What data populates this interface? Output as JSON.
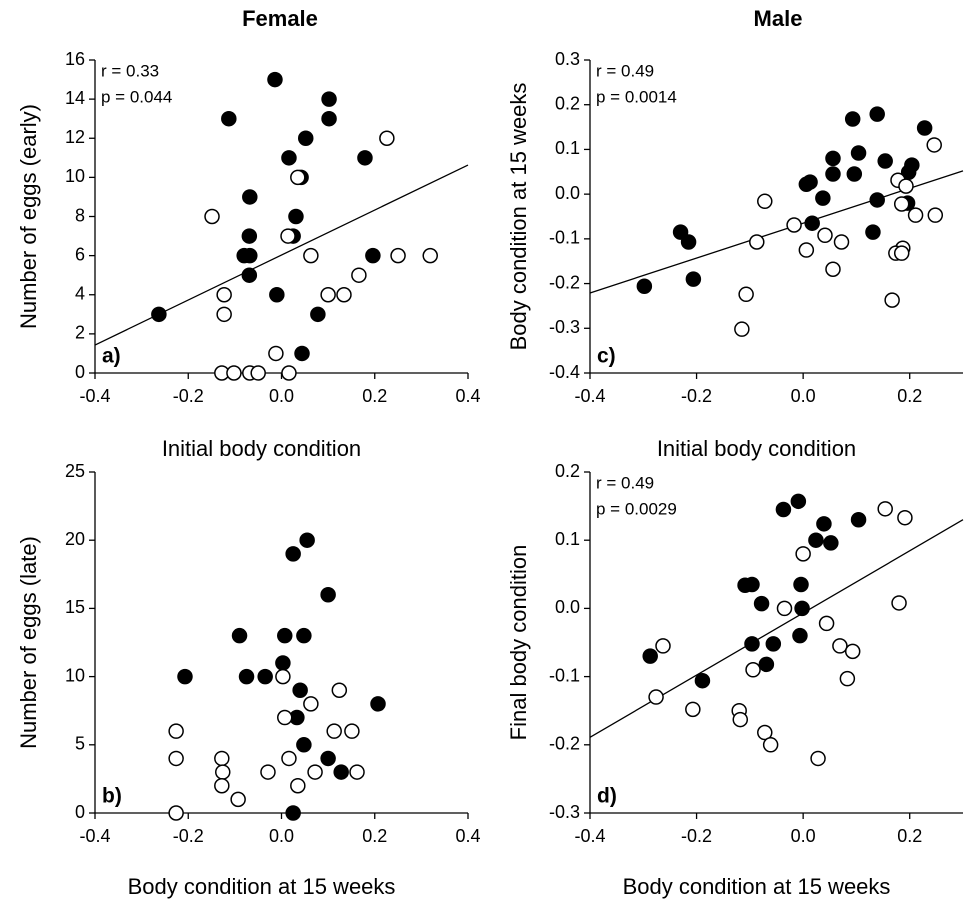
{
  "chart_data": [
    {
      "type": "scatter",
      "title": "Female",
      "label": "a)",
      "annotations": [
        "r = 0.33",
        "p = 0.044"
      ],
      "xlabel": "Initial body condition",
      "ylabel": "Number of eggs (early)",
      "xlim": [
        -0.4,
        0.4
      ],
      "ylim": [
        0,
        16
      ],
      "xticks": [
        -0.4,
        -0.2,
        {
          "value": 0,
          "label": "0.0"
        },
        0.2,
        0.4
      ],
      "yticks": [
        0,
        2,
        4,
        6,
        8,
        10,
        12,
        14,
        16
      ],
      "series": [
        {
          "color": "#000000",
          "x": [
            -0.263,
            -0.113,
            -0.014,
            0.102,
            0.102,
            0.052,
            0.016,
            0.042,
            -0.068,
            0.179,
            0.031,
            -0.069,
            0.025,
            -0.08,
            -0.068,
            -0.069,
            0.196,
            -0.01,
            0.078,
            0.044
          ],
          "values": [
            3,
            13,
            15,
            14,
            13,
            12,
            11,
            10,
            9,
            11,
            8,
            7,
            7,
            6,
            6,
            5,
            6,
            4,
            3,
            1
          ]
        },
        {
          "color": "#ffffff",
          "x": [
            -0.149,
            -0.123,
            -0.123,
            -0.128,
            -0.102,
            -0.068,
            -0.05,
            -0.012,
            0.016,
            0.035,
            0.014,
            0.063,
            0.166,
            0.1,
            0.134,
            0.226,
            0.25,
            0.319
          ],
          "values": [
            8,
            4,
            3,
            0,
            0,
            0,
            0,
            1,
            0,
            10,
            7,
            6,
            5,
            4,
            4,
            12,
            6,
            6
          ]
        }
      ],
      "fit": {
        "x": [
          -0.4,
          0.4
        ],
        "y": [
          1.43,
          10.63
        ]
      }
    },
    {
      "type": "scatter",
      "label": "b)",
      "xlabel": "Body condition at 15 weeks",
      "ylabel": "Number of eggs (late)",
      "xlim": [
        -0.4,
        0.4
      ],
      "ylim": [
        0,
        25
      ],
      "xticks": [
        -0.4,
        -0.2,
        {
          "value": 0,
          "label": "0.0"
        },
        0.2,
        0.4
      ],
      "yticks": [
        0,
        5,
        10,
        15,
        20,
        25
      ],
      "series": [
        {
          "color": "#000000",
          "x": [
            -0.207,
            -0.09,
            -0.075,
            -0.035,
            0.007,
            0.003,
            0.025,
            0.055,
            0.048,
            0.1,
            0.04,
            0.033,
            0.048,
            0.1,
            0.128,
            0.207,
            0.025
          ],
          "values": [
            10,
            13,
            10,
            10,
            13,
            11,
            19,
            20,
            13,
            16,
            9,
            7,
            5,
            4,
            3,
            8,
            0
          ]
        },
        {
          "color": "#ffffff",
          "x": [
            -0.226,
            -0.226,
            -0.226,
            -0.128,
            -0.126,
            -0.128,
            -0.093,
            -0.029,
            0.003,
            0.007,
            0.016,
            0.035,
            0.063,
            0.072,
            0.124,
            0.113,
            0.151,
            0.162
          ],
          "values": [
            6,
            4,
            0,
            4,
            3,
            2,
            1,
            3,
            10,
            7,
            4,
            2,
            8,
            3,
            9,
            6,
            6,
            3
          ]
        }
      ]
    },
    {
      "type": "scatter",
      "title": "Male",
      "label": "c)",
      "annotations": [
        "r = 0.49",
        "p = 0.0014"
      ],
      "xlabel": "Initial body condition",
      "ylabel": "Body condition at 15 weeks",
      "xlim": [
        -0.4,
        0.3
      ],
      "ylim": [
        -0.4,
        0.3
      ],
      "xticks": [
        -0.4,
        -0.2,
        {
          "value": 0,
          "label": "0.0"
        },
        0.2
      ],
      "yticks": [
        -0.4,
        -0.3,
        -0.2,
        -0.1,
        {
          "value": 0,
          "label": "0.0"
        },
        0.1,
        0.2,
        0.3
      ],
      "series": [
        {
          "color": "#000000",
          "x": [
            -0.298,
            -0.23,
            -0.215,
            -0.206,
            0.006,
            0.013,
            0.056,
            0.056,
            0.037,
            0.017,
            0.104,
            0.096,
            0.093,
            0.139,
            0.154,
            0.139,
            0.131,
            0.198,
            0.204,
            0.196,
            0.228
          ],
          "values": [
            -0.206,
            -0.085,
            -0.107,
            -0.19,
            0.022,
            0.027,
            0.08,
            0.045,
            -0.009,
            -0.065,
            0.092,
            0.045,
            0.168,
            0.179,
            0.074,
            -0.013,
            -0.085,
            0.049,
            0.065,
            -0.02,
            0.148
          ]
        },
        {
          "color": "#ffffff",
          "x": [
            -0.072,
            -0.017,
            -0.087,
            0.006,
            0.041,
            0.072,
            0.056,
            -0.107,
            -0.115,
            0.178,
            0.193,
            0.185,
            0.211,
            0.246,
            0.248,
            0.187,
            0.174,
            0.185,
            0.167
          ],
          "values": [
            -0.016,
            -0.069,
            -0.107,
            -0.125,
            -0.092,
            -0.107,
            -0.168,
            -0.224,
            -0.302,
            0.031,
            0.018,
            -0.022,
            -0.047,
            0.11,
            -0.047,
            -0.121,
            -0.132,
            -0.132,
            -0.237
          ]
        }
      ],
      "fit": {
        "x": [
          -0.4,
          0.3
        ],
        "y": [
          -0.221,
          0.052
        ]
      }
    },
    {
      "type": "scatter",
      "label": "d)",
      "annotations": [
        "r = 0.49",
        "p = 0.0029"
      ],
      "xlabel": "Body condition at 15 weeks",
      "ylabel": "Final body condition",
      "xlim": [
        -0.4,
        0.3
      ],
      "ylim": [
        -0.3,
        0.2
      ],
      "xticks": [
        -0.4,
        -0.2,
        {
          "value": 0,
          "label": "0.0"
        },
        0.2
      ],
      "yticks": [
        -0.3,
        -0.2,
        -0.1,
        {
          "value": 0,
          "label": "0.0"
        },
        0.1,
        0.2
      ],
      "series": [
        {
          "color": "#000000",
          "x": [
            -0.287,
            -0.189,
            -0.109,
            -0.096,
            -0.078,
            -0.096,
            -0.069,
            -0.056,
            -0.037,
            -0.009,
            -0.004,
            -0.002,
            -0.006,
            0.024,
            0.039,
            0.052,
            0.104
          ],
          "values": [
            -0.07,
            -0.106,
            0.034,
            0.035,
            0.007,
            -0.052,
            -0.082,
            -0.052,
            0.145,
            0.157,
            0.035,
            0,
            -0.04,
            0.1,
            0.124,
            0.096,
            0.13
          ]
        },
        {
          "color": "#ffffff",
          "x": [
            -0.263,
            -0.276,
            -0.207,
            -0.12,
            -0.118,
            -0.094,
            -0.072,
            -0.061,
            -0.035,
            0,
            0.044,
            0.069,
            0.093,
            0.083,
            0.028,
            0.154,
            0.191,
            0.18
          ],
          "values": [
            -0.055,
            -0.13,
            -0.148,
            -0.15,
            -0.163,
            -0.09,
            -0.182,
            -0.2,
            0,
            0.08,
            -0.022,
            -0.055,
            -0.063,
            -0.103,
            -0.22,
            0.146,
            0.133,
            0.008
          ]
        }
      ],
      "fit": {
        "x": [
          -0.4,
          0.3
        ],
        "y": [
          -0.189,
          0.13
        ]
      }
    }
  ]
}
